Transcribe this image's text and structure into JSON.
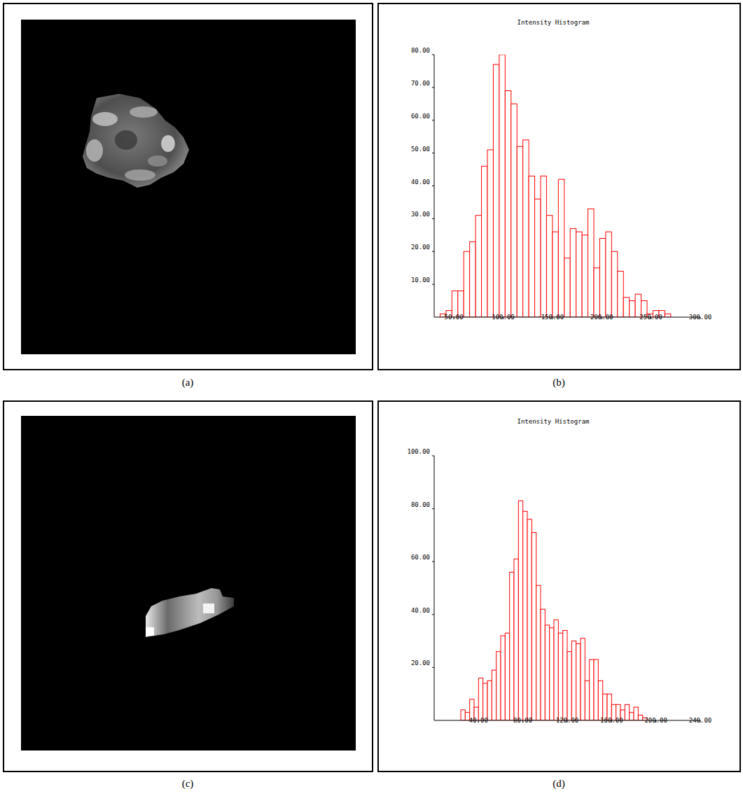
{
  "chart_data": [
    {
      "type": "histogram",
      "title": "Intensity Histogram",
      "bins": [
        36,
        42,
        48,
        54,
        60,
        66,
        72,
        78,
        84,
        90,
        96,
        102,
        108,
        114,
        120,
        126,
        132,
        138,
        144,
        150,
        156,
        162,
        168,
        174,
        180,
        186,
        192,
        198,
        204,
        210,
        216,
        222,
        228,
        234,
        240,
        246,
        252,
        258,
        264,
        270
      ],
      "values": [
        1,
        2,
        8,
        8,
        20,
        23,
        31,
        46,
        51,
        77,
        80,
        69,
        65,
        52,
        54,
        43,
        36,
        43,
        31,
        26,
        42,
        18,
        27,
        26,
        25,
        33,
        15,
        24,
        26,
        20,
        14,
        6,
        5,
        7,
        5,
        1,
        2,
        2,
        1
      ],
      "color": "#ff0000",
      "xlim": [
        30,
        300
      ],
      "xticks": [
        {
          "value": 50,
          "label": "50.00"
        },
        {
          "value": 100,
          "label": "100.00"
        },
        {
          "value": 150,
          "label": "150.00"
        },
        {
          "value": 200,
          "label": "200.00"
        },
        {
          "value": 250,
          "label": "250.00"
        },
        {
          "value": 300,
          "label": "300.00"
        }
      ],
      "ylim": [
        0,
        80
      ],
      "yticks": [
        {
          "value": 10,
          "label": "10.00"
        },
        {
          "value": 20,
          "label": "20.00"
        },
        {
          "value": 30,
          "label": "30.00"
        },
        {
          "value": 40,
          "label": "40.00"
        },
        {
          "value": 50,
          "label": "50.00"
        },
        {
          "value": 60,
          "label": "60.00"
        },
        {
          "value": 70,
          "label": "70.00"
        },
        {
          "value": 80,
          "label": "80.00"
        }
      ]
    },
    {
      "type": "histogram",
      "title": "Intensity Histogram",
      "bins": [
        24,
        28,
        32,
        36,
        40,
        44,
        48,
        52,
        56,
        60,
        64,
        68,
        72,
        76,
        80,
        84,
        88,
        92,
        96,
        100,
        104,
        108,
        112,
        116,
        120,
        124,
        128,
        132,
        136,
        140,
        144,
        148,
        152,
        156,
        160,
        164,
        168,
        172,
        176,
        180,
        184,
        188,
        192
      ],
      "values": [
        4,
        3,
        8,
        5,
        16,
        14,
        15,
        19,
        26,
        32,
        33,
        56,
        61,
        83,
        79,
        76,
        71,
        51,
        42,
        36,
        35,
        38,
        33,
        34,
        26,
        30,
        29,
        31,
        15,
        23,
        23,
        15,
        10,
        10,
        6,
        6,
        4,
        6,
        3,
        5,
        2,
        1
      ],
      "color": "#ff0000",
      "xlim": [
        0,
        240
      ],
      "xticks": [
        {
          "value": 40,
          "label": "40.00"
        },
        {
          "value": 80,
          "label": "80.00"
        },
        {
          "value": 120,
          "label": "120.00"
        },
        {
          "value": 160,
          "label": "160.00"
        },
        {
          "value": 200,
          "label": "200.00"
        },
        {
          "value": 240,
          "label": "240.00"
        }
      ],
      "ylim": [
        0,
        100
      ],
      "yticks": [
        {
          "value": 20,
          "label": "20.00"
        },
        {
          "value": 40,
          "label": "40.00"
        },
        {
          "value": 60,
          "label": "60.00"
        },
        {
          "value": 80,
          "label": "80.00"
        },
        {
          "value": 100,
          "label": "100.00"
        }
      ]
    }
  ],
  "panel_labels": [
    "(a)",
    "(b)",
    "(c)",
    "(d)"
  ]
}
